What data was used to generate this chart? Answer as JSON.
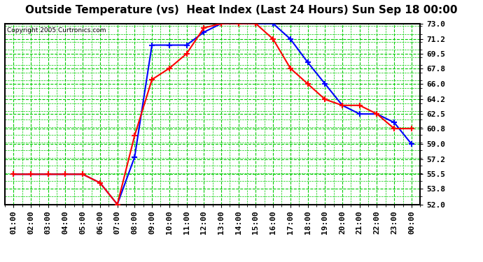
{
  "title": "Outside Temperature (vs)  Heat Index (Last 24 Hours) Sun Sep 18 00:00",
  "copyright": "Copyright 2005 Curtronics.com",
  "x_labels": [
    "01:00",
    "02:00",
    "03:00",
    "04:00",
    "05:00",
    "06:00",
    "07:00",
    "08:00",
    "09:00",
    "10:00",
    "11:00",
    "12:00",
    "13:00",
    "14:00",
    "15:00",
    "16:00",
    "17:00",
    "18:00",
    "19:00",
    "20:00",
    "21:00",
    "22:00",
    "23:00",
    "00:00"
  ],
  "ylim": [
    52.0,
    73.0
  ],
  "yticks": [
    52.0,
    53.8,
    55.5,
    57.2,
    59.0,
    60.8,
    62.5,
    64.2,
    66.0,
    67.8,
    69.5,
    71.2,
    73.0
  ],
  "temp_color": "#0000ff",
  "heat_color": "#ff0000",
  "bg_color": "#ffffff",
  "grid_color": "#00cc00",
  "temp_values": [
    55.5,
    55.5,
    55.5,
    55.5,
    55.5,
    54.5,
    52.0,
    57.5,
    70.5,
    70.5,
    70.5,
    72.0,
    73.0,
    73.0,
    73.0,
    73.0,
    71.2,
    68.5,
    66.0,
    63.5,
    62.5,
    62.5,
    61.5,
    59.0
  ],
  "heat_values": [
    55.5,
    55.5,
    55.5,
    55.5,
    55.5,
    54.5,
    52.0,
    60.0,
    66.5,
    67.8,
    69.5,
    72.5,
    73.0,
    73.0,
    73.0,
    71.2,
    67.8,
    66.0,
    64.2,
    63.5,
    63.5,
    62.5,
    60.8,
    60.8
  ],
  "marker": "+",
  "linewidth": 1.5,
  "markersize": 6,
  "title_fontsize": 11,
  "tick_fontsize": 8
}
